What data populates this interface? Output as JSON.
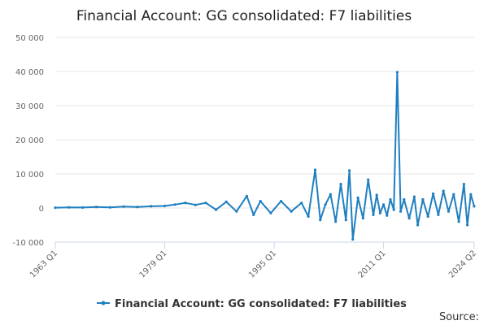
{
  "chart_data": {
    "type": "line",
    "title": "Financial Account: GG consolidated: F7 liabilities",
    "xlabel": "",
    "ylabel": "",
    "x_range": [
      "1963 Q1",
      "2024 Q2"
    ],
    "x_ticks": [
      "1963 Q1",
      "1979 Q1",
      "1995 Q1",
      "2011 Q1",
      "2024 Q2"
    ],
    "ylim": [
      -10000,
      50000
    ],
    "y_ticks": [
      -10000,
      0,
      10000,
      20000,
      30000,
      40000,
      50000
    ],
    "y_tick_labels": [
      "-10 000",
      "0",
      "10 000",
      "20 000",
      "30 000",
      "40 000",
      "50 000"
    ],
    "grid": true,
    "legend_position": "bottom-center",
    "series": [
      {
        "name": "Financial Account: GG consolidated: F7 liabilities",
        "color": "#1f7fc0",
        "points": [
          [
            "1963 Q1",
            100
          ],
          [
            "1965 Q1",
            200
          ],
          [
            "1967 Q1",
            150
          ],
          [
            "1969 Q1",
            300
          ],
          [
            "1971 Q1",
            200
          ],
          [
            "1973 Q1",
            400
          ],
          [
            "1975 Q1",
            300
          ],
          [
            "1977 Q1",
            500
          ],
          [
            "1979 Q1",
            600
          ],
          [
            "1980 Q3",
            1000
          ],
          [
            "1982 Q1",
            1500
          ],
          [
            "1983 Q3",
            900
          ],
          [
            "1985 Q1",
            1500
          ],
          [
            "1986 Q3",
            -500
          ],
          [
            "1988 Q1",
            1800
          ],
          [
            "1989 Q3",
            -1000
          ],
          [
            "1991 Q1",
            3500
          ],
          [
            "1992 Q1",
            -2000
          ],
          [
            "1993 Q1",
            2000
          ],
          [
            "1994 Q3",
            -1500
          ],
          [
            "1996 Q1",
            2000
          ],
          [
            "1997 Q3",
            -1000
          ],
          [
            "1999 Q1",
            1500
          ],
          [
            "2000 Q1",
            -2500
          ],
          [
            "2001 Q1",
            11200
          ],
          [
            "2001 Q4",
            -3500
          ],
          [
            "2002 Q3",
            1000
          ],
          [
            "2003 Q2",
            4000
          ],
          [
            "2004 Q1",
            -4000
          ],
          [
            "2004 Q4",
            7000
          ],
          [
            "2005 Q3",
            -3500
          ],
          [
            "2006 Q1",
            11000
          ],
          [
            "2006 Q3",
            -9200
          ],
          [
            "2007 Q2",
            3000
          ],
          [
            "2008 Q1",
            -3000
          ],
          [
            "2008 Q4",
            8300
          ],
          [
            "2009 Q3",
            -2000
          ],
          [
            "2010 Q1",
            3800
          ],
          [
            "2010 Q3",
            -1500
          ],
          [
            "2011 Q1",
            1000
          ],
          [
            "2011 Q3",
            -2200
          ],
          [
            "2012 Q1",
            2500
          ],
          [
            "2012 Q3",
            -500
          ],
          [
            "2013 Q1",
            39800
          ],
          [
            "2013 Q3",
            -1000
          ],
          [
            "2014 Q1",
            2500
          ],
          [
            "2014 Q4",
            -3000
          ],
          [
            "2015 Q3",
            3300
          ],
          [
            "2016 Q1",
            -5000
          ],
          [
            "2016 Q4",
            2500
          ],
          [
            "2017 Q3",
            -2500
          ],
          [
            "2018 Q2",
            4200
          ],
          [
            "2019 Q1",
            -2000
          ],
          [
            "2019 Q4",
            5000
          ],
          [
            "2020 Q3",
            -1000
          ],
          [
            "2021 Q2",
            4000
          ],
          [
            "2022 Q1",
            -4000
          ],
          [
            "2022 Q4",
            7000
          ],
          [
            "2023 Q2",
            -5000
          ],
          [
            "2023 Q4",
            4000
          ],
          [
            "2024 Q2",
            500
          ]
        ]
      }
    ]
  },
  "footer": {
    "source_label": "Source:"
  }
}
